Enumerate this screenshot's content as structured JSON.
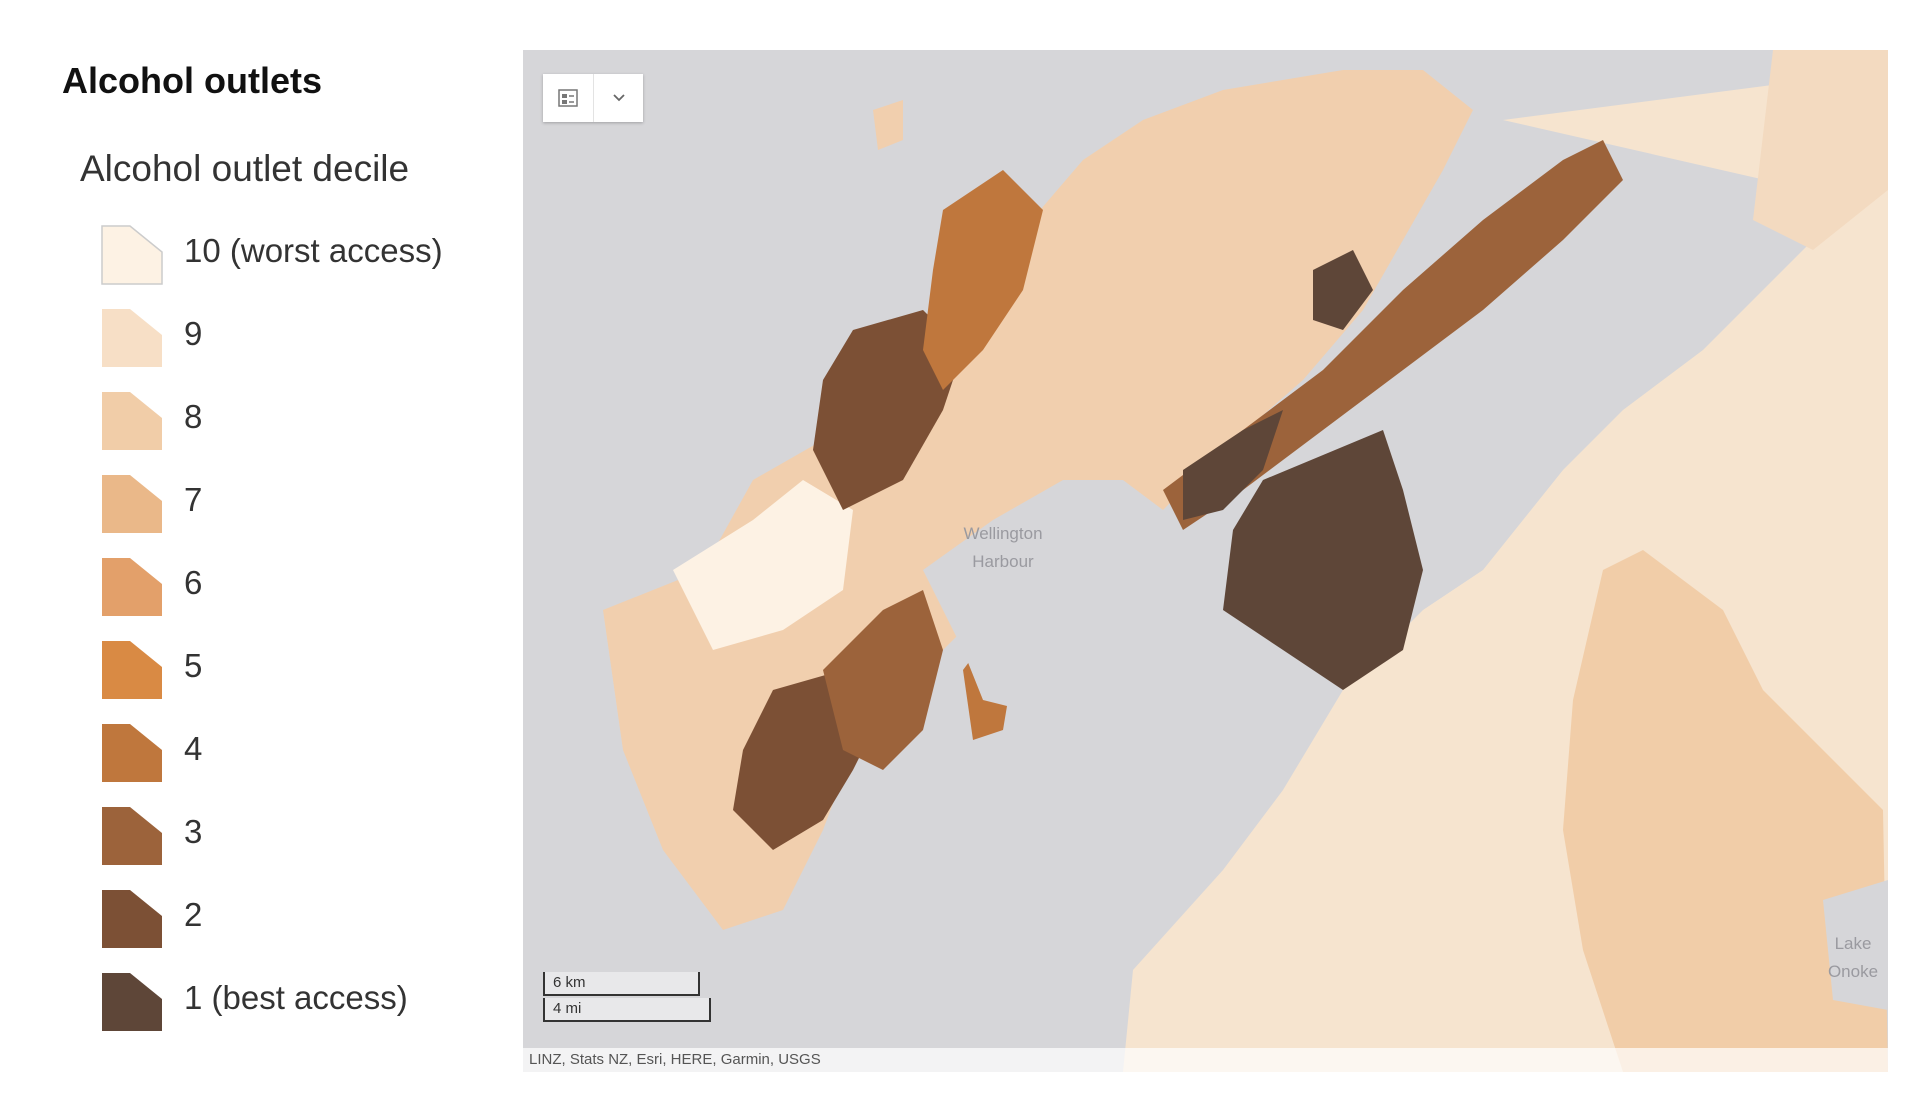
{
  "legend": {
    "title": "Alcohol outlets",
    "subtitle": "Alcohol outlet decile",
    "items": [
      {
        "label": "10 (worst access)",
        "color": "#fdf2e4"
      },
      {
        "label": "9",
        "color": "#f7dfc6"
      },
      {
        "label": "8",
        "color": "#f1cda8"
      },
      {
        "label": "7",
        "color": "#eab889"
      },
      {
        "label": "6",
        "color": "#e3a06a"
      },
      {
        "label": "5",
        "color": "#d98a44"
      },
      {
        "label": "4",
        "color": "#bf773d"
      },
      {
        "label": "3",
        "color": "#9c633b"
      },
      {
        "label": "2",
        "color": "#7c5035"
      },
      {
        "label": "1 (best access)",
        "color": "#5e4638"
      }
    ]
  },
  "map": {
    "water_color": "#d6d6d9",
    "labels": {
      "harbour_line1": "Wellington",
      "harbour_line2": "Harbour",
      "lake_line1": "Lake",
      "lake_line2": "Onoke"
    },
    "widget": {
      "layers_icon": "layer-list-icon",
      "dropdown_icon": "chevron-down-icon"
    },
    "scalebar": {
      "km_label": "6 km",
      "mi_label": "4 mi"
    },
    "attribution": "LINZ, Stats NZ, Esri, HERE, Garmin, USGS"
  }
}
